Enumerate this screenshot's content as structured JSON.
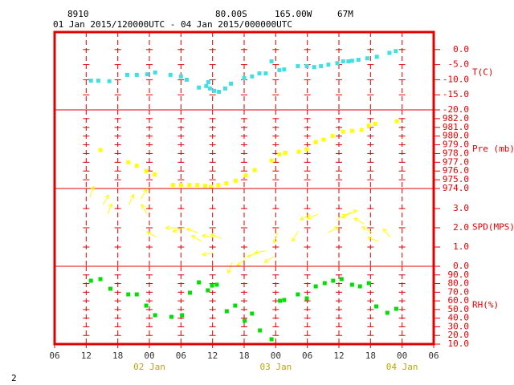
{
  "header": {
    "station": "8910",
    "lat": "80.00S",
    "lon": "165.00W",
    "elev": "67M",
    "period": "01 Jan 2015/120000UTC - 04 Jan 2015/000000UTC"
  },
  "page_number": "2",
  "chart_data": [
    {
      "type": "scatter",
      "ylabel": "T(C)",
      "color": "#40e0e0",
      "ylim": [
        -20,
        5.8
      ],
      "yticks": [
        {
          "value": 0,
          "label": "0.0"
        },
        {
          "value": -5,
          "label": "-5.0"
        },
        {
          "value": -10,
          "label": "-10.0"
        },
        {
          "value": -15,
          "label": "-15.0"
        },
        {
          "value": -20,
          "label": "-20.0"
        }
      ],
      "x": [
        12.9,
        14.3,
        16.4,
        19.8,
        21.6,
        23.6,
        25.1,
        28,
        30,
        31.1,
        33.4,
        34.8,
        35.2,
        35.5,
        36.3,
        37.2,
        38.4,
        39.5,
        42,
        43.5,
        44.9,
        46.1,
        47.2,
        48.7,
        49.6,
        52.2,
        53.9,
        55.3,
        56.6,
        58,
        59.7,
        60.8,
        61.8,
        62.5,
        63.7,
        65.4,
        67.2,
        69.6,
        70.8
      ],
      "values": [
        -10.3,
        -10.3,
        -10.5,
        -8.4,
        -8.4,
        -8.2,
        -7.6,
        -8.4,
        -8.9,
        -10,
        -12.6,
        -12.1,
        -10.8,
        -12.9,
        -13.7,
        -14,
        -12.9,
        -11.3,
        -9.5,
        -8.9,
        -7.9,
        -7.9,
        -3.9,
        -6.8,
        -6.6,
        -5.5,
        -5.5,
        -5.8,
        -5.5,
        -5,
        -4.5,
        -3.9,
        -3.9,
        -3.7,
        -3.4,
        -2.9,
        -2.4,
        -1.1,
        -0.5
      ]
    },
    {
      "type": "scatter",
      "ylabel": "Pre (mb)",
      "color": "#ffff00",
      "ylim": [
        974,
        983
      ],
      "yticks": [
        {
          "value": 974,
          "label": "974.0"
        },
        {
          "value": 975,
          "label": "975.0"
        },
        {
          "value": 976,
          "label": "976.0"
        },
        {
          "value": 977,
          "label": "977.0"
        },
        {
          "value": 978,
          "label": "978.0"
        },
        {
          "value": 979,
          "label": "979.0"
        },
        {
          "value": 980,
          "label": "980.0"
        },
        {
          "value": 981,
          "label": "981.0"
        },
        {
          "value": 982,
          "label": "982.0"
        }
      ],
      "x": [
        14.7,
        20,
        21.6,
        23.4,
        25,
        28.5,
        30,
        31.6,
        33.1,
        34.6,
        35.7,
        37.1,
        38.6,
        40.4,
        42.3,
        44,
        47.2,
        48.7,
        49.8,
        52.4,
        53.9,
        55.6,
        57.1,
        58.8,
        60.8,
        62.5,
        64.3,
        65.7,
        66.9,
        71
      ],
      "values": [
        978.4,
        977,
        976.6,
        976,
        975.6,
        974.4,
        974.4,
        974.4,
        974.4,
        974.3,
        974.2,
        974.4,
        974.6,
        974.9,
        975.5,
        976.1,
        977.2,
        977.9,
        978.1,
        978.2,
        978.5,
        979.3,
        979.6,
        980,
        980.5,
        980.6,
        980.7,
        981.2,
        981.4,
        981.7
      ]
    },
    {
      "type": "arrows",
      "ylabel": "SPD(MPS)",
      "color": "#ffff00",
      "ylim": [
        0,
        4.04
      ],
      "yticks": [
        {
          "value": 0,
          "label": "0.0"
        },
        {
          "value": 1,
          "label": "1.0"
        },
        {
          "value": 2,
          "label": "2.0"
        },
        {
          "value": 3,
          "label": "3.0"
        }
      ],
      "x": [
        12.7,
        15.2,
        16.1,
        20.1,
        22.4,
        23.6,
        25.4,
        29.3,
        30.5,
        33.1,
        33.9,
        36.2,
        37.7,
        36.2,
        39.7,
        42.3,
        44.6,
        46.1,
        47.7,
        48.4,
        52.2,
        54.5,
        56,
        58,
        59.5,
        61.4,
        62.5,
        64.8,
        66.3,
        67.5,
        69.8
      ],
      "values": [
        3.6,
        3.2,
        2.7,
        3.2,
        3.5,
        2.7,
        1.5,
        2,
        2,
        1.75,
        1.3,
        1.5,
        1.45,
        0.7,
        0.2,
        0.4,
        0.7,
        0.8,
        0.5,
        1.75,
        1.8,
        2.7,
        2.7,
        1.75,
        2.4,
        2.7,
        2.8,
        2.2,
        1.75,
        1.3,
        1.5
      ],
      "directions": [
        20,
        30,
        20,
        25,
        30,
        330,
        300,
        270,
        250,
        290,
        300,
        280,
        290,
        260,
        200,
        230,
        250,
        260,
        240,
        200,
        210,
        240,
        250,
        60,
        60,
        70,
        240,
        300,
        300,
        290,
        320
      ]
    },
    {
      "type": "scatter",
      "ylabel": "RH(%)",
      "color": "#00e000",
      "ylim": [
        10,
        100
      ],
      "yticks": [
        {
          "value": 10,
          "label": "10.0"
        },
        {
          "value": 20,
          "label": "20.0"
        },
        {
          "value": 30,
          "label": "30.0"
        },
        {
          "value": 40,
          "label": "40.0"
        },
        {
          "value": 50,
          "label": "50.0"
        },
        {
          "value": 60,
          "label": "60.0"
        },
        {
          "value": 70,
          "label": "70.0"
        },
        {
          "value": 80,
          "label": "80.0"
        },
        {
          "value": 90,
          "label": "90.0"
        }
      ],
      "x": [
        12.9,
        14.7,
        16.6,
        20,
        21.6,
        23.4,
        25.1,
        28.2,
        30.2,
        31.7,
        33.4,
        35.1,
        35.9,
        36.8,
        38.7,
        40.3,
        42.1,
        43.5,
        45,
        47.2,
        48.8,
        49.6,
        52.2,
        53.9,
        55.6,
        57.3,
        58.9,
        60.5,
        62.5,
        64,
        65.7,
        67.1,
        69.2,
        70.9
      ],
      "values": [
        83.3,
        85.2,
        74,
        67.5,
        67.5,
        54.5,
        43.4,
        41.5,
        43.4,
        69.4,
        81.4,
        72.2,
        77.7,
        78.7,
        48,
        54.5,
        36.9,
        45.3,
        25.8,
        15.6,
        60.1,
        61,
        67.5,
        62.9,
        76.8,
        80.5,
        83.3,
        85.2,
        78.7,
        76.8,
        80.5,
        53.6,
        46.2,
        50.8
      ],
      "xlim": [
        6,
        78
      ],
      "xticks": [
        {
          "value": 6,
          "label": "06"
        },
        {
          "value": 12,
          "label": "12"
        },
        {
          "value": 18,
          "label": "18"
        },
        {
          "value": 24,
          "label": "00"
        },
        {
          "value": 30,
          "label": "06"
        },
        {
          "value": 36,
          "label": "12"
        },
        {
          "value": 42,
          "label": "18"
        },
        {
          "value": 48,
          "label": "00"
        },
        {
          "value": 54,
          "label": "06"
        },
        {
          "value": 60,
          "label": "12"
        },
        {
          "value": 66,
          "label": "18"
        },
        {
          "value": 72,
          "label": "00"
        },
        {
          "value": 78,
          "label": "06"
        }
      ],
      "date_ticks": [
        {
          "value": 24,
          "label": "02 Jan"
        },
        {
          "value": 48,
          "label": "03 Jan"
        },
        {
          "value": 72,
          "label": "04 Jan"
        }
      ]
    }
  ]
}
